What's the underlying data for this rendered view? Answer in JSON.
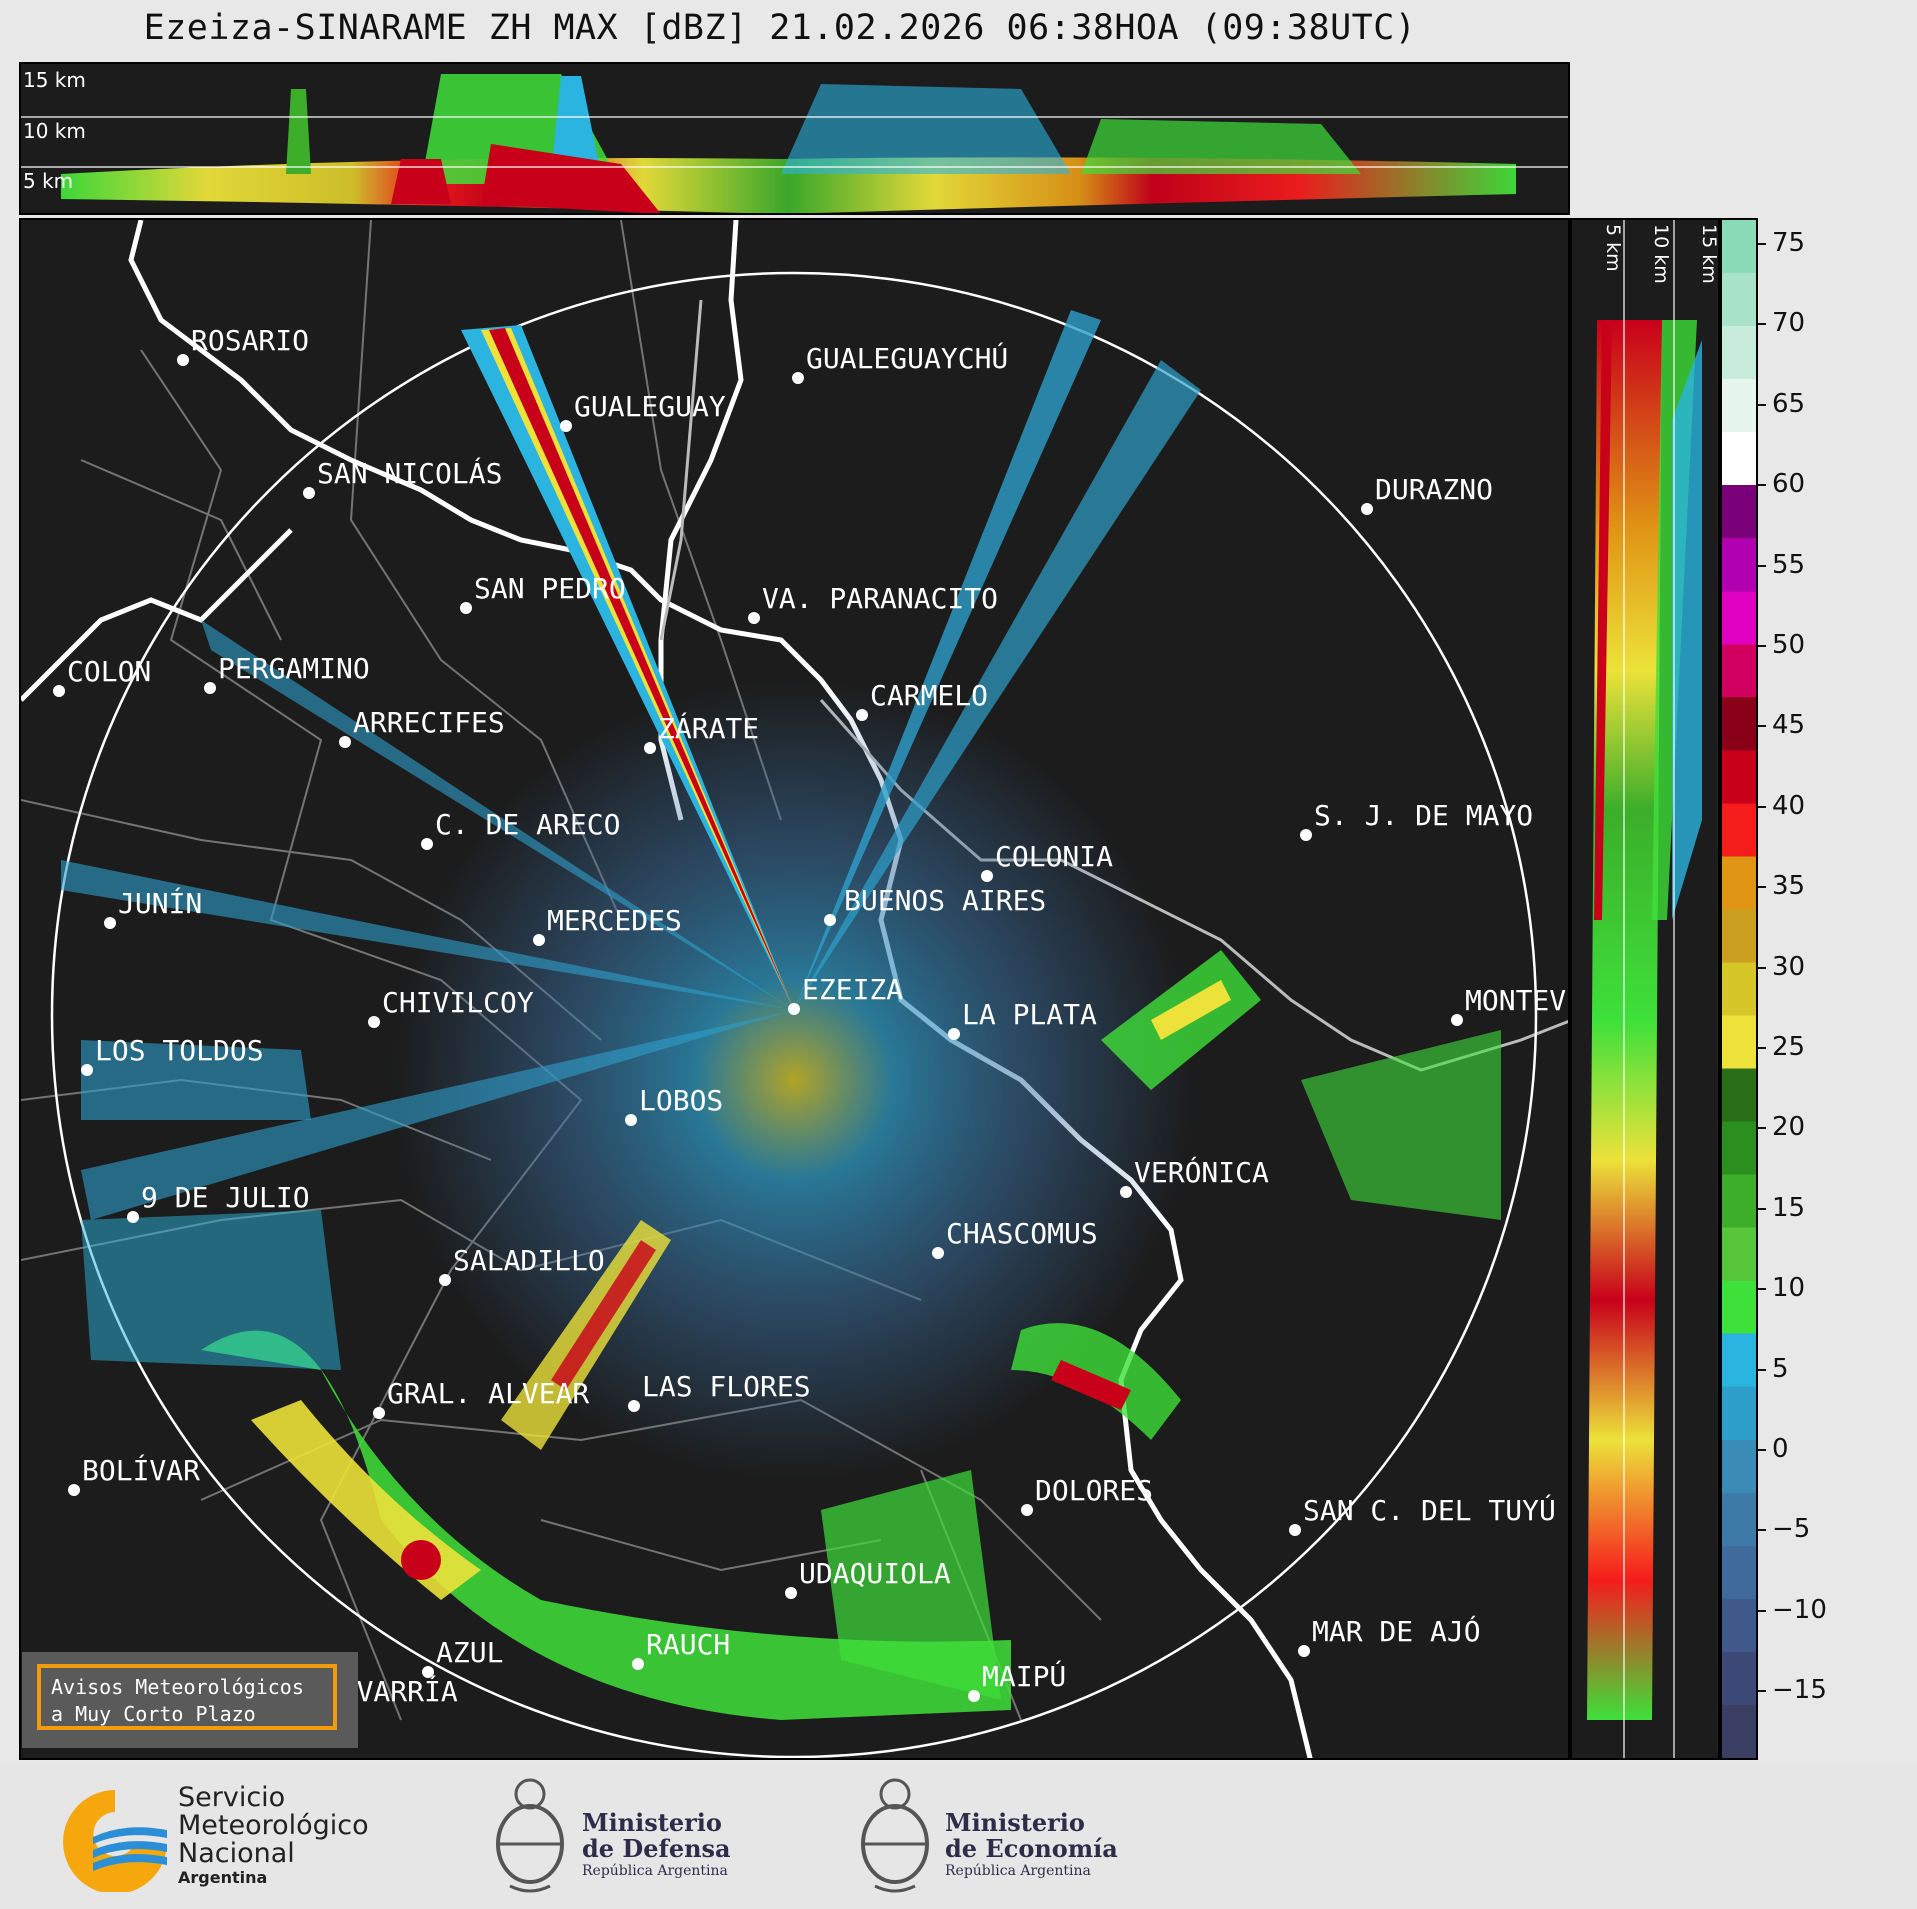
{
  "header": {
    "title": "Ezeiza-SINARAME ZH MAX [dBZ] 21.02.2026 06:38HOA (09:38UTC)"
  },
  "top_panel": {
    "height_labels": [
      "15 km",
      "10 km",
      "5 km"
    ]
  },
  "side_panel": {
    "height_labels": [
      "5 km",
      "10 km",
      "15 km"
    ]
  },
  "colorbar": {
    "unit": "dBZ",
    "ticks": [
      "75",
      "70",
      "65",
      "60",
      "55",
      "50",
      "45",
      "40",
      "35",
      "30",
      "25",
      "20",
      "15",
      "10",
      "5",
      "0",
      "−5",
      "−10",
      "−15"
    ],
    "colors": [
      "#3a3f63",
      "#3d4a78",
      "#3f5a8a",
      "#3f6a99",
      "#3d7aa8",
      "#3a8cb7",
      "#2e9fcb",
      "#2bb4e0",
      "#3ee03a",
      "#57c63a",
      "#3cae2a",
      "#2b8f1f",
      "#2a6e18",
      "#ece23a",
      "#d6c62a",
      "#c9a020",
      "#e09515",
      "#f51c1c",
      "#c8001a",
      "#8a0018",
      "#d10060",
      "#e000c0",
      "#b000b0",
      "#7a007a",
      "#ffffff",
      "#e6f5ee",
      "#c8ecdc",
      "#a8e2c8",
      "#8adab8"
    ]
  },
  "map": {
    "radar_site": "EZEIZA",
    "cities": [
      {
        "name": "ROSARIO"
      },
      {
        "name": "GUALEGUAYCHÚ"
      },
      {
        "name": "GUALEGUAY"
      },
      {
        "name": "SAN NICOLÁS"
      },
      {
        "name": "DURAZNO"
      },
      {
        "name": "SAN PEDRO"
      },
      {
        "name": "VA. PARANACITO"
      },
      {
        "name": "COLON"
      },
      {
        "name": "PERGAMINO"
      },
      {
        "name": "CARMELO"
      },
      {
        "name": "ARRECIFES"
      },
      {
        "name": "ZÁRATE"
      },
      {
        "name": "S. J. DE MAYO"
      },
      {
        "name": "C. DE ARECO"
      },
      {
        "name": "COLONIA"
      },
      {
        "name": "JUNÍN"
      },
      {
        "name": "BUENOS AIRES"
      },
      {
        "name": "MERCEDES"
      },
      {
        "name": "EZEIZA"
      },
      {
        "name": "MONTEV"
      },
      {
        "name": "CHIVILCOY"
      },
      {
        "name": "LA PLATA"
      },
      {
        "name": "LOS TOLDOS"
      },
      {
        "name": "LOBOS"
      },
      {
        "name": "VERÓNICA"
      },
      {
        "name": "9 DE JULIO"
      },
      {
        "name": "CHASCOMUS"
      },
      {
        "name": "SALADILLO"
      },
      {
        "name": "GRAL. ALVEAR"
      },
      {
        "name": "LAS FLORES"
      },
      {
        "name": "BOLÍVAR"
      },
      {
        "name": "DOLORES"
      },
      {
        "name": "SAN C. DEL TUYÚ"
      },
      {
        "name": "UDAQUIOLA"
      },
      {
        "name": "AZUL"
      },
      {
        "name": "RAUCH"
      },
      {
        "name": "MAR DE AJÓ"
      },
      {
        "name": "OLAVARRÍA"
      },
      {
        "name": "MAIPÚ"
      }
    ]
  },
  "aviso": {
    "line1": "Avisos Meteorológicos",
    "line2": "a Muy Corto Plazo"
  },
  "footer": {
    "smn": {
      "line1": "Servicio",
      "line2": "Meteorológico",
      "line3": "Nacional",
      "line4": "Argentina"
    },
    "defensa": {
      "line1": "Ministerio",
      "line2": "de Defensa",
      "line3": "República Argentina"
    },
    "economia": {
      "line1": "Ministerio",
      "line2": "de Economía",
      "line3": "República Argentina"
    }
  }
}
